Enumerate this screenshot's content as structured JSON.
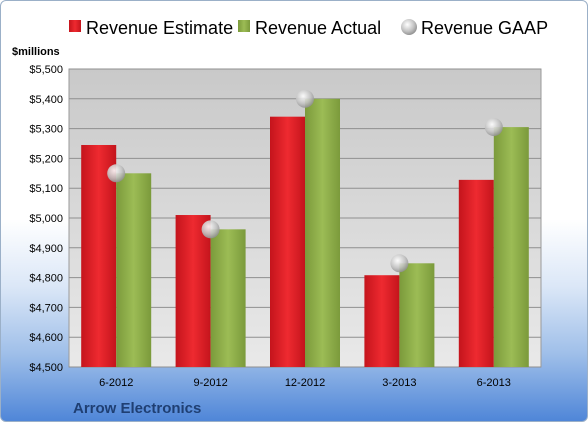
{
  "chart_data": {
    "type": "bar",
    "categories": [
      "6-2012",
      "9-2012",
      "12-2012",
      "3-2013",
      "6-2013"
    ],
    "series": [
      {
        "name": "Revenue Estimate",
        "values": [
          5245,
          5010,
          5340,
          4808,
          5128
        ],
        "color": "#e01f26",
        "style": "bar"
      },
      {
        "name": "Revenue Actual",
        "values": [
          5150,
          4962,
          5400,
          4848,
          5305
        ],
        "color": "#8fb04a",
        "style": "bar"
      },
      {
        "name": "Revenue GAAP",
        "values": [
          5150,
          4962,
          5400,
          4848,
          5305
        ],
        "color": "#c8c8c8",
        "style": "marker"
      }
    ],
    "y_tick_labels": [
      "$4,500",
      "$4,600",
      "$4,700",
      "$4,800",
      "$4,900",
      "$5,000",
      "$5,100",
      "$5,200",
      "$5,300",
      "$5,400",
      "$5,500"
    ],
    "ylim": [
      4500,
      5500
    ],
    "ylabel": "$millions",
    "grid": true,
    "legend_position": "top"
  },
  "footer": {
    "company": "Arrow Electronics"
  }
}
